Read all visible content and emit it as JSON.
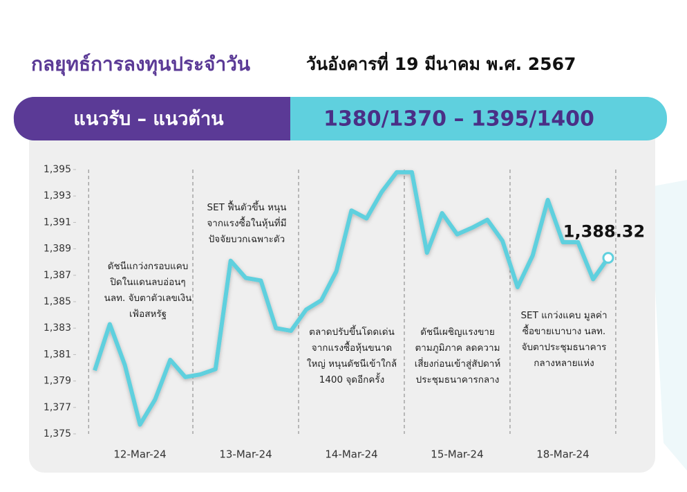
{
  "banner": {
    "label": "แนวรับ – แนวต้าน",
    "value": "1380/1370  –  1395/1400"
  },
  "chart_data": {
    "type": "line",
    "title": "กลยุทธ์การลงทุนประจำวัน",
    "subtitle": "วันอังคารที่ 19 มีนาคม พ.ศ. 2567",
    "categories": [
      null,
      null,
      null,
      "12-Mar-24",
      null,
      null,
      null,
      null,
      null,
      null,
      "13-Mar-24",
      null,
      null,
      null,
      null,
      null,
      null,
      "14-Mar-24",
      null,
      null,
      null,
      null,
      null,
      null,
      "15-Mar-24",
      null,
      null,
      null,
      null,
      null,
      null,
      "18-Mar-24",
      null,
      null,
      null
    ],
    "values": [
      1379.8,
      1383.3,
      1380.2,
      1375.7,
      1377.6,
      1380.6,
      1379.3,
      1379.5,
      1379.9,
      1388.1,
      1386.8,
      1386.6,
      1383.0,
      1382.8,
      1384.4,
      1385.1,
      1387.3,
      1391.9,
      1391.3,
      1393.3,
      1394.8,
      1394.8,
      1388.7,
      1391.7,
      1390.1,
      1390.6,
      1391.2,
      1389.6,
      1386.1,
      1388.5,
      1392.7,
      1389.5,
      1389.5,
      1386.7,
      1388.32
    ],
    "value_labels": [
      null,
      null,
      null,
      null,
      null,
      null,
      null,
      null,
      null,
      null,
      null,
      null,
      null,
      null,
      null,
      null,
      null,
      null,
      null,
      null,
      null,
      null,
      null,
      null,
      null,
      null,
      null,
      null,
      null,
      null,
      null,
      null,
      null,
      null,
      "1,388.32"
    ],
    "color": "#5fd0de",
    "ylim": [
      1375,
      1395
    ],
    "yticks": [
      {
        "value": 1375,
        "label": "1,375"
      },
      {
        "value": 1377,
        "label": "1,377"
      },
      {
        "value": 1379,
        "label": "1,379"
      },
      {
        "value": 1381,
        "label": "1,381"
      },
      {
        "value": 1383,
        "label": "1,383"
      },
      {
        "value": 1385,
        "label": "1,385"
      },
      {
        "value": 1387,
        "label": "1,387"
      },
      {
        "value": 1389,
        "label": "1,389"
      },
      {
        "value": 1391,
        "label": "1,391"
      },
      {
        "value": 1393,
        "label": "1,393"
      },
      {
        "value": 1395,
        "label": "1,395"
      }
    ],
    "annotations": [
      [
        "ดัชนีแกว่งกรอบแคบ",
        "ปิดในแดนลบอ่อนๆ",
        "นลท. จับตาตัวเลขเงิน",
        "เฟ้อสหรัฐ"
      ],
      [
        "SET ฟื้นตัวขึ้น หนุน",
        "จากแรงซื้อในหุ้นที่มี",
        "ปัจจัยบวกเฉพาะตัว"
      ],
      [
        "ตลาดปรับขึ้นโดดเด่น",
        "จากแรงซื้อหุ้นขนาด",
        "ใหญ่ หนุนดัชนีเข้าใกล้",
        "1400 จุดอีกครั้ง"
      ],
      [
        "ดัชนีเผชิญแรงขาย",
        "ตามภูมิภาค ลดความ",
        "เสี่ยงก่อนเข้าสู่สัปดาห์",
        "ประชุมธนาคารกลาง"
      ],
      [
        "SET แกว่งแคบ มูลค่า",
        "ซื้อขายเบาบาง นลท.",
        "จับตาประชุมธนาคาร",
        "กลางหลายแห่ง"
      ]
    ]
  }
}
